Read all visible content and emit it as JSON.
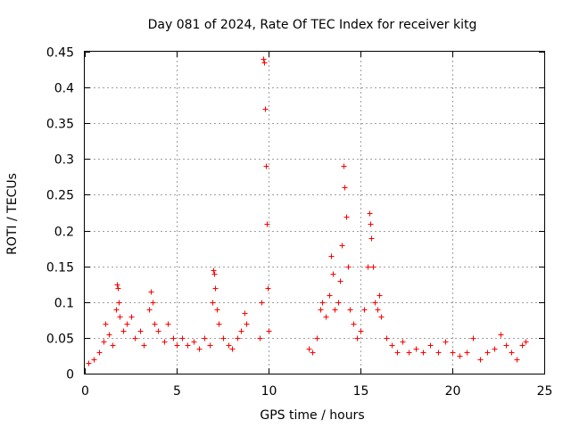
{
  "chart_data": {
    "type": "scatter",
    "title": "Day 081 of 2024, Rate Of TEC Index for receiver kitg",
    "xlabel": "GPS time / hours",
    "ylabel": "ROTI / TECUs",
    "xlim": [
      0,
      25
    ],
    "ylim": [
      0,
      0.45
    ],
    "xticks": [
      0,
      5,
      10,
      15,
      20,
      25
    ],
    "yticks": [
      0,
      0.05,
      0.1,
      0.15,
      0.2,
      0.25,
      0.3,
      0.35,
      0.4,
      0.45
    ],
    "ytick_labels": [
      "0",
      "0.05",
      "0.1",
      "0.15",
      "0.2",
      "0.25",
      "0.3",
      "0.35",
      "0.4",
      "0.45"
    ],
    "grid": true,
    "marker": "+",
    "color": "#ff0000",
    "data_gap_hours": [
      10.2,
      12.1
    ],
    "series": [
      {
        "name": "ROTI",
        "points": [
          [
            0.2,
            0.015
          ],
          [
            0.5,
            0.02
          ],
          [
            0.8,
            0.03
          ],
          [
            1.0,
            0.045
          ],
          [
            1.1,
            0.07
          ],
          [
            1.3,
            0.055
          ],
          [
            1.5,
            0.04
          ],
          [
            1.7,
            0.09
          ],
          [
            1.75,
            0.125
          ],
          [
            1.8,
            0.12
          ],
          [
            1.85,
            0.1
          ],
          [
            1.9,
            0.08
          ],
          [
            2.1,
            0.06
          ],
          [
            2.3,
            0.07
          ],
          [
            2.5,
            0.08
          ],
          [
            2.7,
            0.05
          ],
          [
            3.0,
            0.06
          ],
          [
            3.2,
            0.04
          ],
          [
            3.5,
            0.09
          ],
          [
            3.6,
            0.115
          ],
          [
            3.7,
            0.1
          ],
          [
            3.8,
            0.07
          ],
          [
            4.0,
            0.06
          ],
          [
            4.3,
            0.045
          ],
          [
            4.5,
            0.07
          ],
          [
            4.8,
            0.05
          ],
          [
            5.0,
            0.04
          ],
          [
            5.3,
            0.05
          ],
          [
            5.6,
            0.04
          ],
          [
            5.9,
            0.045
          ],
          [
            6.2,
            0.035
          ],
          [
            6.5,
            0.05
          ],
          [
            6.8,
            0.04
          ],
          [
            6.95,
            0.1
          ],
          [
            7.0,
            0.145
          ],
          [
            7.05,
            0.14
          ],
          [
            7.1,
            0.12
          ],
          [
            7.2,
            0.09
          ],
          [
            7.3,
            0.07
          ],
          [
            7.5,
            0.05
          ],
          [
            7.8,
            0.04
          ],
          [
            8.0,
            0.035
          ],
          [
            8.3,
            0.05
          ],
          [
            8.5,
            0.06
          ],
          [
            8.7,
            0.085
          ],
          [
            8.8,
            0.07
          ],
          [
            9.5,
            0.05
          ],
          [
            9.6,
            0.1
          ],
          [
            9.7,
            0.44
          ],
          [
            9.75,
            0.435
          ],
          [
            9.8,
            0.37
          ],
          [
            9.85,
            0.29
          ],
          [
            9.9,
            0.21
          ],
          [
            9.95,
            0.12
          ],
          [
            10.0,
            0.06
          ],
          [
            12.2,
            0.035
          ],
          [
            12.4,
            0.03
          ],
          [
            12.6,
            0.05
          ],
          [
            12.8,
            0.09
          ],
          [
            12.9,
            0.1
          ],
          [
            13.1,
            0.08
          ],
          [
            13.3,
            0.11
          ],
          [
            13.4,
            0.165
          ],
          [
            13.5,
            0.14
          ],
          [
            13.6,
            0.09
          ],
          [
            13.8,
            0.1
          ],
          [
            13.9,
            0.13
          ],
          [
            14.0,
            0.18
          ],
          [
            14.1,
            0.29
          ],
          [
            14.15,
            0.26
          ],
          [
            14.2,
            0.22
          ],
          [
            14.3,
            0.15
          ],
          [
            14.4,
            0.09
          ],
          [
            14.6,
            0.07
          ],
          [
            14.8,
            0.05
          ],
          [
            15.0,
            0.06
          ],
          [
            15.2,
            0.09
          ],
          [
            15.4,
            0.15
          ],
          [
            15.5,
            0.225
          ],
          [
            15.55,
            0.21
          ],
          [
            15.6,
            0.19
          ],
          [
            15.7,
            0.15
          ],
          [
            15.8,
            0.1
          ],
          [
            15.9,
            0.09
          ],
          [
            16.0,
            0.11
          ],
          [
            16.1,
            0.08
          ],
          [
            16.4,
            0.05
          ],
          [
            16.7,
            0.04
          ],
          [
            17.0,
            0.03
          ],
          [
            17.3,
            0.045
          ],
          [
            17.6,
            0.03
          ],
          [
            18.0,
            0.035
          ],
          [
            18.4,
            0.03
          ],
          [
            18.8,
            0.04
          ],
          [
            19.2,
            0.03
          ],
          [
            19.6,
            0.045
          ],
          [
            20.0,
            0.03
          ],
          [
            20.4,
            0.025
          ],
          [
            20.8,
            0.03
          ],
          [
            21.1,
            0.05
          ],
          [
            21.5,
            0.02
          ],
          [
            21.9,
            0.03
          ],
          [
            22.3,
            0.035
          ],
          [
            22.6,
            0.055
          ],
          [
            22.9,
            0.04
          ],
          [
            23.2,
            0.03
          ],
          [
            23.5,
            0.02
          ],
          [
            23.8,
            0.04
          ],
          [
            24.0,
            0.045
          ]
        ]
      }
    ]
  }
}
